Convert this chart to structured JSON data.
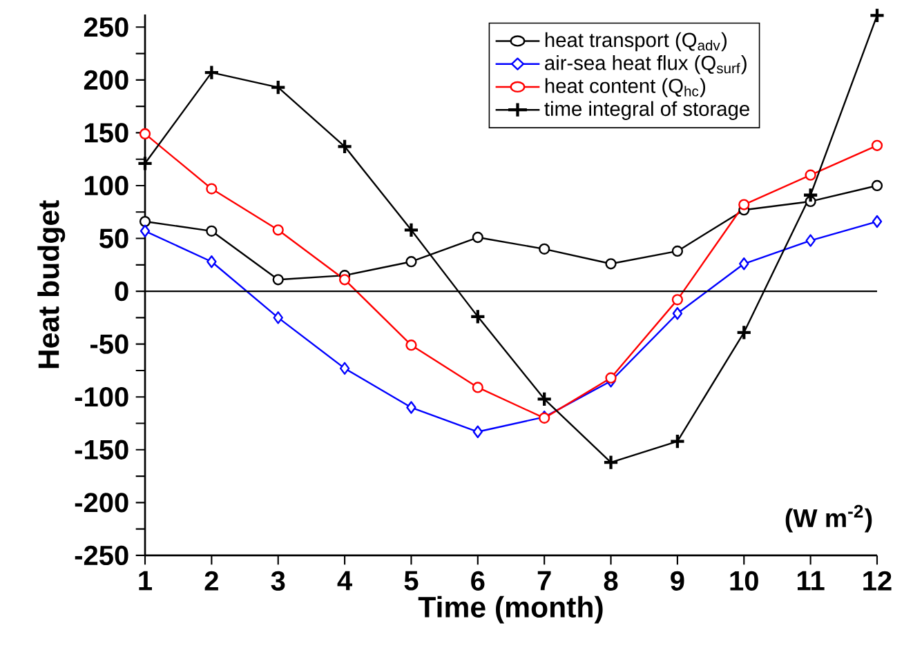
{
  "chart_data": {
    "type": "line",
    "xlabel": "Time (month)",
    "ylabel": "Heat budget",
    "x": [
      1,
      2,
      3,
      4,
      5,
      6,
      7,
      8,
      9,
      10,
      11,
      12
    ],
    "series": [
      {
        "name": "heat transport (Q$_{adv}$)",
        "color": "#000000",
        "marker": "circle",
        "values": [
          66,
          57,
          11,
          15,
          28,
          51,
          40,
          26,
          38,
          77,
          85,
          100
        ]
      },
      {
        "name": "air-sea heat flux (Q$_{surf}$)",
        "color": "#0000ff",
        "marker": "diamond",
        "values": [
          57,
          28,
          -25,
          -73,
          -110,
          -133,
          -119,
          -85,
          -21,
          26,
          48,
          66
        ]
      },
      {
        "name": "heat content (Q$_{hc}$)",
        "color": "#ff0000",
        "marker": "circle",
        "values": [
          149,
          97,
          58,
          11,
          -51,
          -91,
          -120,
          -82,
          -8,
          82,
          110,
          138
        ]
      },
      {
        "name": "time integral of storage",
        "color": "#000000",
        "marker": "cross",
        "values": [
          121,
          207,
          193,
          137,
          58,
          -24,
          -102,
          -162,
          -142,
          -39,
          91,
          261
        ]
      }
    ],
    "xlim": [
      1,
      12
    ],
    "xticks": [
      1,
      2,
      3,
      4,
      5,
      6,
      7,
      8,
      9,
      10,
      11,
      12
    ],
    "ylim": [
      -250,
      262
    ],
    "yticks": [
      -250,
      {
        "value": -225,
        "label": null
      },
      -200,
      {
        "value": -175,
        "label": null
      },
      -150,
      {
        "value": -125,
        "label": null
      },
      -100,
      {
        "value": -75,
        "label": null
      },
      -50,
      {
        "value": -25,
        "label": null
      },
      0,
      {
        "value": 25,
        "label": null
      },
      50,
      {
        "value": 75,
        "label": null
      },
      100,
      {
        "value": 125,
        "label": null
      },
      150,
      {
        "value": 175,
        "label": null
      },
      200,
      {
        "value": 225,
        "label": null
      },
      250
    ],
    "ref_lines": [
      {
        "axis": "y",
        "value": 0,
        "color": "#000000"
      }
    ],
    "annotations": [
      "(W m$^{-2}$)"
    ],
    "legend": "top right",
    "grid": false,
    "line_style": "solid"
  }
}
